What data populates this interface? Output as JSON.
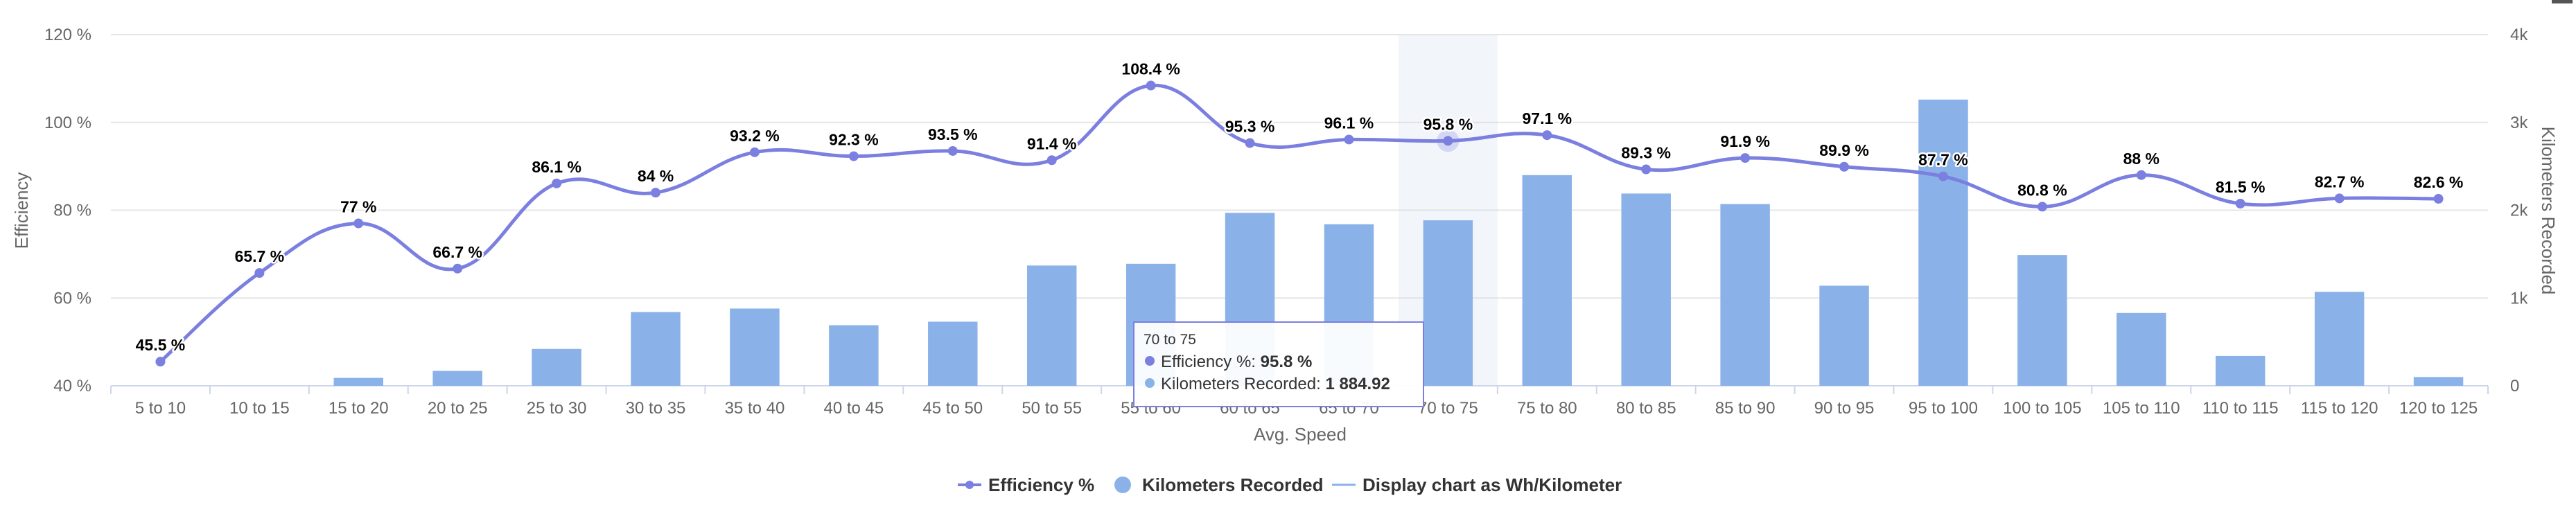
{
  "chart_data": {
    "type": "bar+line",
    "categories": [
      "5 to 10",
      "10 to 15",
      "15 to 20",
      "20 to 25",
      "25 to 30",
      "30 to 35",
      "35 to 40",
      "40 to 45",
      "45 to 50",
      "50 to 55",
      "55 to 60",
      "60 to 65",
      "65 to 70",
      "70 to 75",
      "75 to 80",
      "80 to 85",
      "85 to 90",
      "90 to 95",
      "95 to 100",
      "100 to 105",
      "105 to 110",
      "110 to 115",
      "115 to 120",
      "120 to 125"
    ],
    "xlabel": "Avg. Speed",
    "y_left": {
      "label": "Efficiency",
      "range": [
        40,
        120
      ],
      "ticks": [
        "40 %",
        "60 %",
        "80 %",
        "100 %",
        "120 %"
      ]
    },
    "y_right": {
      "label": "Kilometers Recorded",
      "range": [
        0,
        4000
      ],
      "ticks": [
        "0",
        "1k",
        "2k",
        "3k",
        "4k"
      ]
    },
    "grid": true,
    "legend_position": "bottom-center",
    "series": [
      {
        "name": "Efficiency %",
        "kind": "line",
        "axis": "left",
        "color": "#7b7fe0",
        "values": [
          45.5,
          65.7,
          77,
          66.7,
          86.1,
          84,
          93.2,
          92.3,
          93.5,
          91.4,
          108.4,
          95.3,
          96.1,
          95.8,
          97.1,
          89.3,
          91.9,
          89.9,
          87.7,
          80.8,
          88,
          81.5,
          82.7,
          82.6
        ],
        "labels": [
          "45.5 %",
          "65.7 %",
          "77 %",
          "66.7 %",
          "86.1 %",
          "84 %",
          "93.2 %",
          "92.3 %",
          "93.5 %",
          "91.4 %",
          "108.4 %",
          "95.3 %",
          "96.1 %",
          "95.8 %",
          "97.1 %",
          "89.3 %",
          "91.9 %",
          "89.9 %",
          "87.7 %",
          "80.8 %",
          "88 %",
          "81.5 %",
          "82.7 %",
          "82.6 %"
        ]
      },
      {
        "name": "Kilometers Recorded",
        "kind": "bar",
        "axis": "right",
        "color": "#8ab2e8",
        "values": [
          0,
          0,
          90,
          170,
          420,
          840,
          880,
          690,
          730,
          1370,
          1390,
          1970,
          1840,
          1884.92,
          2400,
          2190,
          2070,
          1140,
          3260,
          1490,
          830,
          340,
          1070,
          100
        ]
      },
      {
        "name": "Display chart as Wh/Kilometer",
        "kind": "toggle",
        "color": "#8ab2e8"
      }
    ],
    "highlight_index": 13,
    "tooltip": {
      "header": "70 to 75",
      "rows": [
        {
          "label": "Efficiency %: ",
          "value": "95.8 %",
          "color": "#7b7fe0"
        },
        {
          "label": "Kilometers Recorded: ",
          "value": "1 884.92",
          "color": "#8ab2e8"
        }
      ]
    }
  }
}
